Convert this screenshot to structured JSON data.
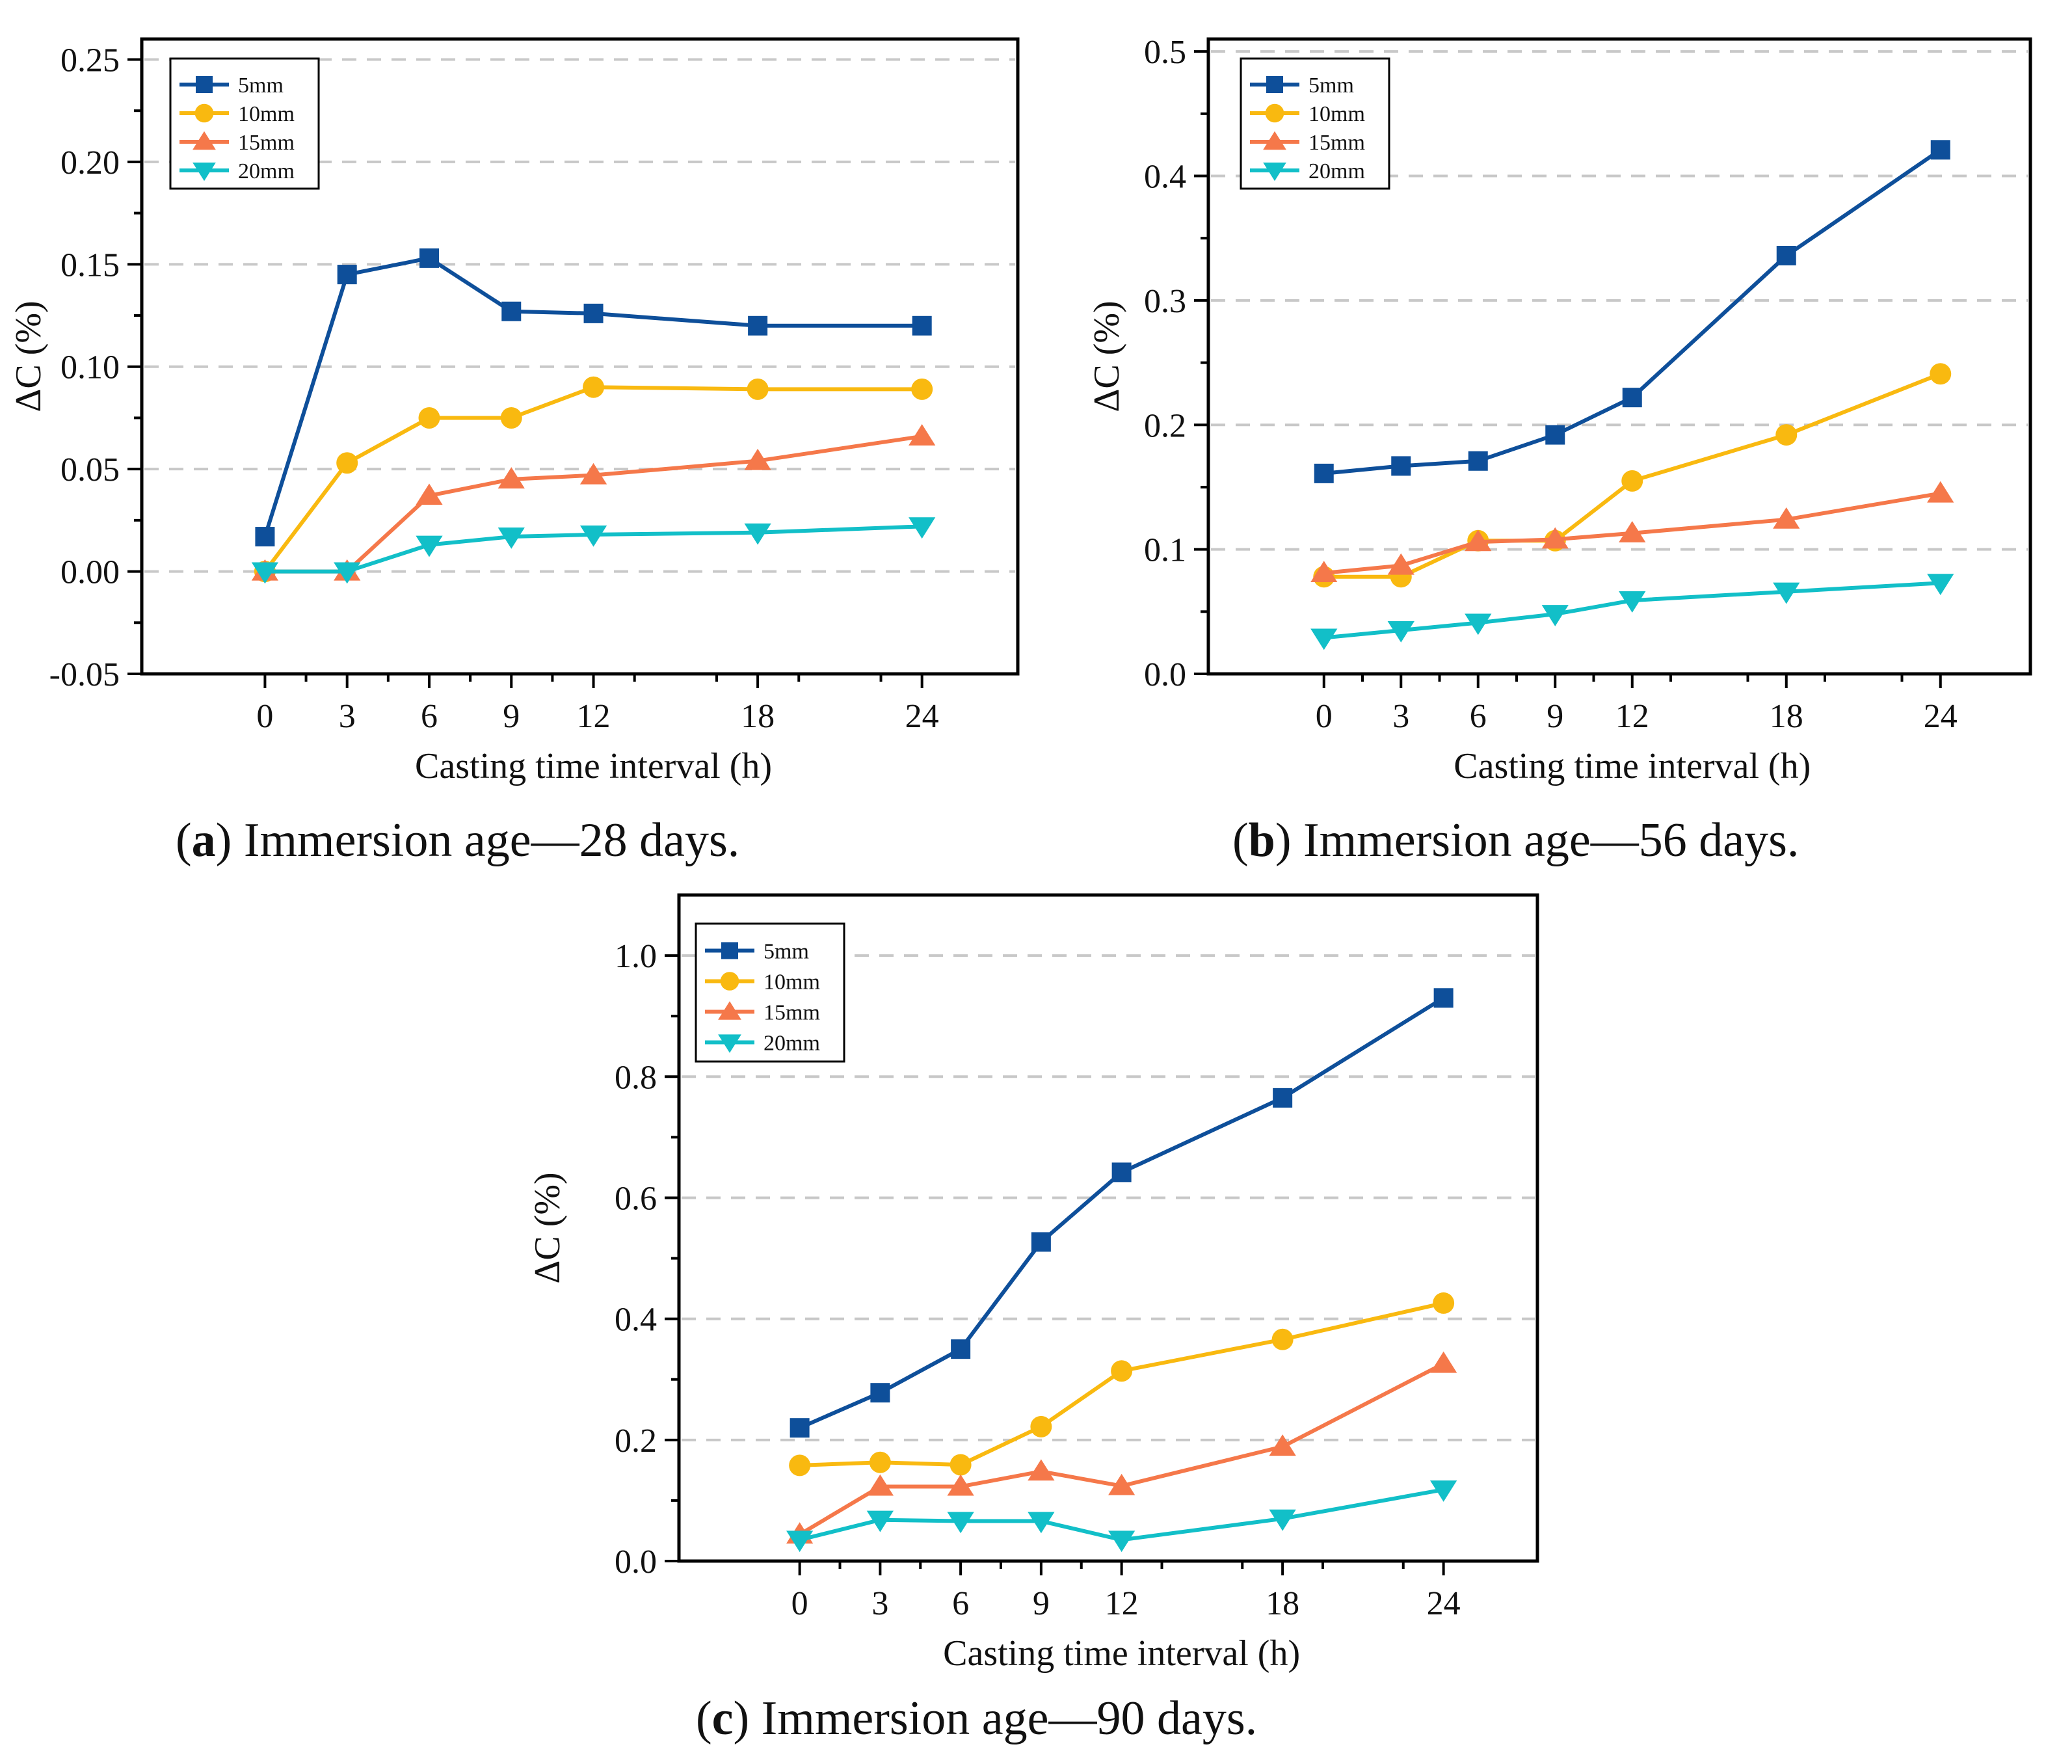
{
  "colors": {
    "5mm": "#0e4f9a",
    "10mm": "#f9b910",
    "15mm": "#f5784a",
    "20mm": "#12bfc8",
    "grid": "#c8c8c8",
    "axis": "#000000"
  },
  "legend_labels": [
    "5mm",
    "10mm",
    "15mm",
    "20mm"
  ],
  "chart_data": [
    {
      "id": "a",
      "type": "line",
      "caption": {
        "letter": "a",
        "text": " Immersion age—28 days."
      },
      "xlabel": "Casting time interval (h)",
      "ylabel": "ΔC (%)",
      "x": [
        0,
        3,
        6,
        9,
        12,
        18,
        24
      ],
      "x_ticks": [
        0,
        3,
        6,
        9,
        12,
        18,
        24
      ],
      "x_tick_labels": [
        "0",
        "3",
        "6",
        "9",
        "12",
        "18",
        "24"
      ],
      "xlim": [
        -4.5,
        27.5
      ],
      "ylim": [
        -0.05,
        0.26
      ],
      "y_ticks": [
        -0.05,
        0.0,
        0.05,
        0.1,
        0.15,
        0.2,
        0.25
      ],
      "y_tick_labels": [
        "-0.05",
        "0.00",
        "0.05",
        "0.10",
        "0.15",
        "0.20",
        "0.25"
      ],
      "grid_y": [
        0.0,
        0.05,
        0.1,
        0.15,
        0.2,
        0.25
      ],
      "legend": "top-left",
      "series": [
        {
          "name": "5mm",
          "marker": "square",
          "values": [
            0.017,
            0.145,
            0.153,
            0.127,
            0.126,
            0.12,
            0.12
          ]
        },
        {
          "name": "10mm",
          "marker": "circle",
          "values": [
            0.0,
            0.053,
            0.075,
            0.075,
            0.09,
            0.089,
            0.089
          ]
        },
        {
          "name": "15mm",
          "marker": "triangle-up",
          "values": [
            0.0,
            0.0,
            0.037,
            0.045,
            0.047,
            0.054,
            0.066
          ]
        },
        {
          "name": "20mm",
          "marker": "triangle-down",
          "values": [
            0.0,
            0.0,
            0.013,
            0.017,
            0.018,
            0.019,
            0.022
          ]
        }
      ]
    },
    {
      "id": "b",
      "type": "line",
      "caption": {
        "letter": "b",
        "text": " Immersion age—56 days."
      },
      "xlabel": "Casting time interval (h)",
      "ylabel": "ΔC (%)",
      "x": [
        0,
        3,
        6,
        9,
        12,
        18,
        24
      ],
      "x_ticks": [
        0,
        3,
        6,
        9,
        12,
        18,
        24
      ],
      "x_tick_labels": [
        "0",
        "3",
        "6",
        "9",
        "12",
        "18",
        "24"
      ],
      "xlim": [
        -4.5,
        27.5
      ],
      "ylim": [
        0.0,
        0.51
      ],
      "y_ticks": [
        0.0,
        0.1,
        0.2,
        0.3,
        0.4,
        0.5
      ],
      "y_tick_labels": [
        "0.0",
        "0.1",
        "0.2",
        "0.3",
        "0.4",
        "0.5"
      ],
      "grid_y": [
        0.1,
        0.2,
        0.3,
        0.4,
        0.5
      ],
      "legend": "top-left",
      "series": [
        {
          "name": "5mm",
          "marker": "square",
          "values": [
            0.161,
            0.167,
            0.171,
            0.192,
            0.222,
            0.336,
            0.421
          ]
        },
        {
          "name": "10mm",
          "marker": "circle",
          "values": [
            0.078,
            0.078,
            0.107,
            0.107,
            0.155,
            0.192,
            0.241
          ]
        },
        {
          "name": "15mm",
          "marker": "triangle-up",
          "values": [
            0.081,
            0.087,
            0.106,
            0.108,
            0.113,
            0.124,
            0.145
          ]
        },
        {
          "name": "20mm",
          "marker": "triangle-down",
          "values": [
            0.029,
            0.035,
            0.041,
            0.048,
            0.059,
            0.066,
            0.073
          ]
        }
      ]
    },
    {
      "id": "c",
      "type": "line",
      "caption": {
        "letter": "c",
        "text": " Immersion age—90 days."
      },
      "xlabel": "Casting time interval (h)",
      "ylabel": "ΔC (%)",
      "x": [
        0,
        3,
        6,
        9,
        12,
        18,
        24
      ],
      "x_ticks": [
        0,
        3,
        6,
        9,
        12,
        18,
        24
      ],
      "x_tick_labels": [
        "0",
        "3",
        "6",
        "9",
        "12",
        "18",
        "24"
      ],
      "xlim": [
        -4.5,
        27.5
      ],
      "ylim": [
        0.0,
        1.1
      ],
      "y_ticks": [
        0.0,
        0.2,
        0.4,
        0.6,
        0.8,
        1.0
      ],
      "y_tick_labels": [
        "0.0",
        "0.2",
        "0.4",
        "0.6",
        "0.8",
        "1.0"
      ],
      "grid_y": [
        0.2,
        0.4,
        0.6,
        0.8,
        1.0
      ],
      "legend": "top-left",
      "series": [
        {
          "name": "5mm",
          "marker": "square",
          "values": [
            0.22,
            0.278,
            0.35,
            0.527,
            0.642,
            0.765,
            0.93
          ]
        },
        {
          "name": "10mm",
          "marker": "circle",
          "values": [
            0.158,
            0.163,
            0.159,
            0.222,
            0.314,
            0.366,
            0.426
          ]
        },
        {
          "name": "15mm",
          "marker": "triangle-up",
          "values": [
            0.044,
            0.123,
            0.123,
            0.148,
            0.124,
            0.189,
            0.326
          ]
        },
        {
          "name": "20mm",
          "marker": "triangle-down",
          "values": [
            0.035,
            0.068,
            0.066,
            0.066,
            0.035,
            0.07,
            0.118
          ]
        }
      ]
    }
  ]
}
